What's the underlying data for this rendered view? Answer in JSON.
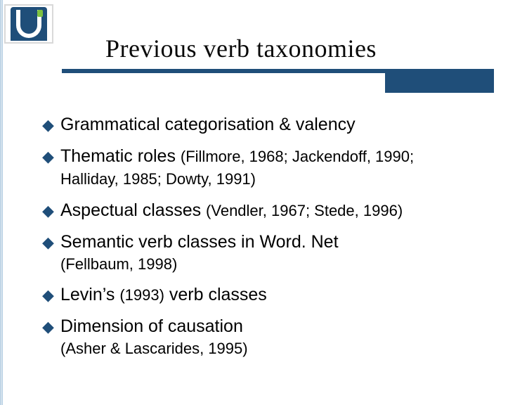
{
  "colors": {
    "primary": "#1f4e79",
    "text": "#000000",
    "background": "#ffffff",
    "logo_accent": "#7fc241"
  },
  "title": "Previous verb taxonomies",
  "title_fontsize": 36,
  "title_font": "Times New Roman",
  "body_fontsize": 25,
  "cite_fontsize": 22,
  "bullets": [
    {
      "main": "Grammatical categorisation & valency",
      "cite_inline": "",
      "sub": ""
    },
    {
      "main": "Thematic roles ",
      "cite_inline": "(Fillmore, 1968; Jackendoff, 1990; Halliday, 1985; Dowty, 1991)",
      "sub": ""
    },
    {
      "main": "Aspectual classes ",
      "cite_inline": "(Vendler, 1967; Stede, 1996)",
      "sub": ""
    },
    {
      "main": "Semantic verb classes in Word. Net",
      "cite_inline": "",
      "sub": "(Fellbaum, 1998)"
    },
    {
      "main": "Levin’s ",
      "cite_inline": "(1993)",
      "tail": " verb classes",
      "sub": ""
    },
    {
      "main": "Dimension of causation",
      "cite_inline": "",
      "sub": "(Asher & Lascarides, 1995)"
    }
  ],
  "bullet_mark": "◆",
  "underline": {
    "color": "#1f4e79",
    "height": 6
  },
  "accent_box": {
    "color": "#1f4e79",
    "width": 155,
    "height": 34
  }
}
